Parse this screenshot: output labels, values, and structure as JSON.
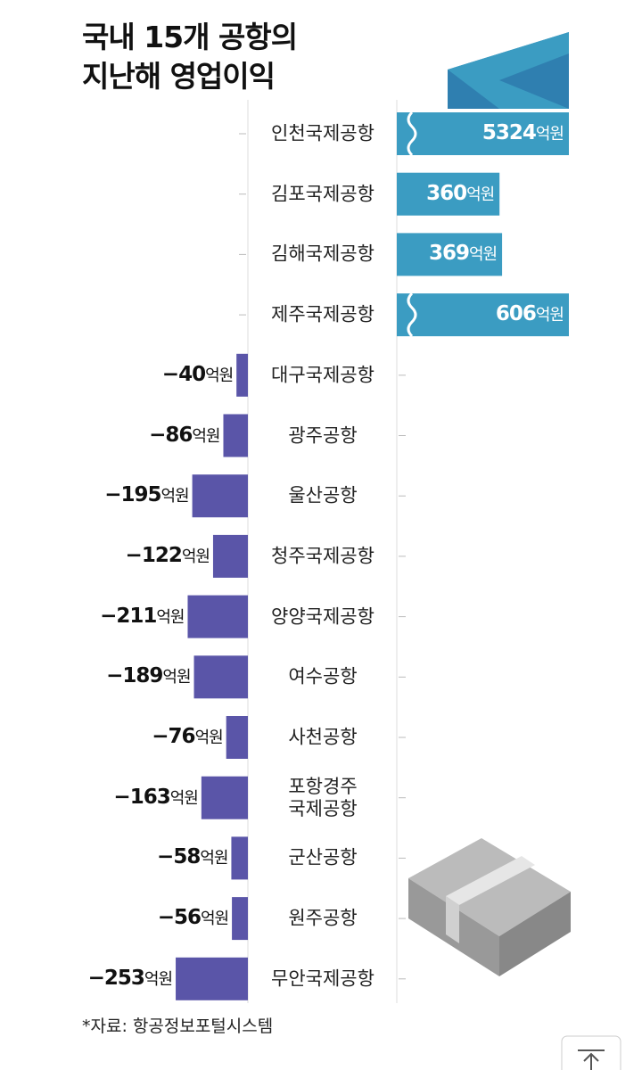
{
  "chart_data": {
    "type": "diverging-bar",
    "title": "국내 15개 공항의\n지난해 영업이익",
    "categories": [
      "인천국제공항",
      "김포국제공항",
      "김해국제공항",
      "제주국제공항",
      "대구국제공항",
      "광주공항",
      "울산공항",
      "청주국제공항",
      "양양국제공항",
      "여수공항",
      "사천공항",
      "포항경주\n국제공항",
      "군산공항",
      "원주공항",
      "무안국제공항"
    ],
    "values": [
      5324,
      360,
      369,
      606,
      -40,
      -86,
      -195,
      -122,
      -211,
      -189,
      -76,
      -163,
      -58,
      -56,
      -253
    ],
    "value_labels": [
      "5324억원",
      "360억원",
      "369억원",
      "606억원",
      "−40억원",
      "−86억원",
      "−195억원",
      "−122억원",
      "−211억원",
      "−189억원",
      "−76억원",
      "−163억원",
      "−58억원",
      "−56억원",
      "−253억원"
    ],
    "positive_color": "#3b9cc2",
    "negative_color": "#5a55a8",
    "source": "*자료:  항공정보포털시스템"
  }
}
